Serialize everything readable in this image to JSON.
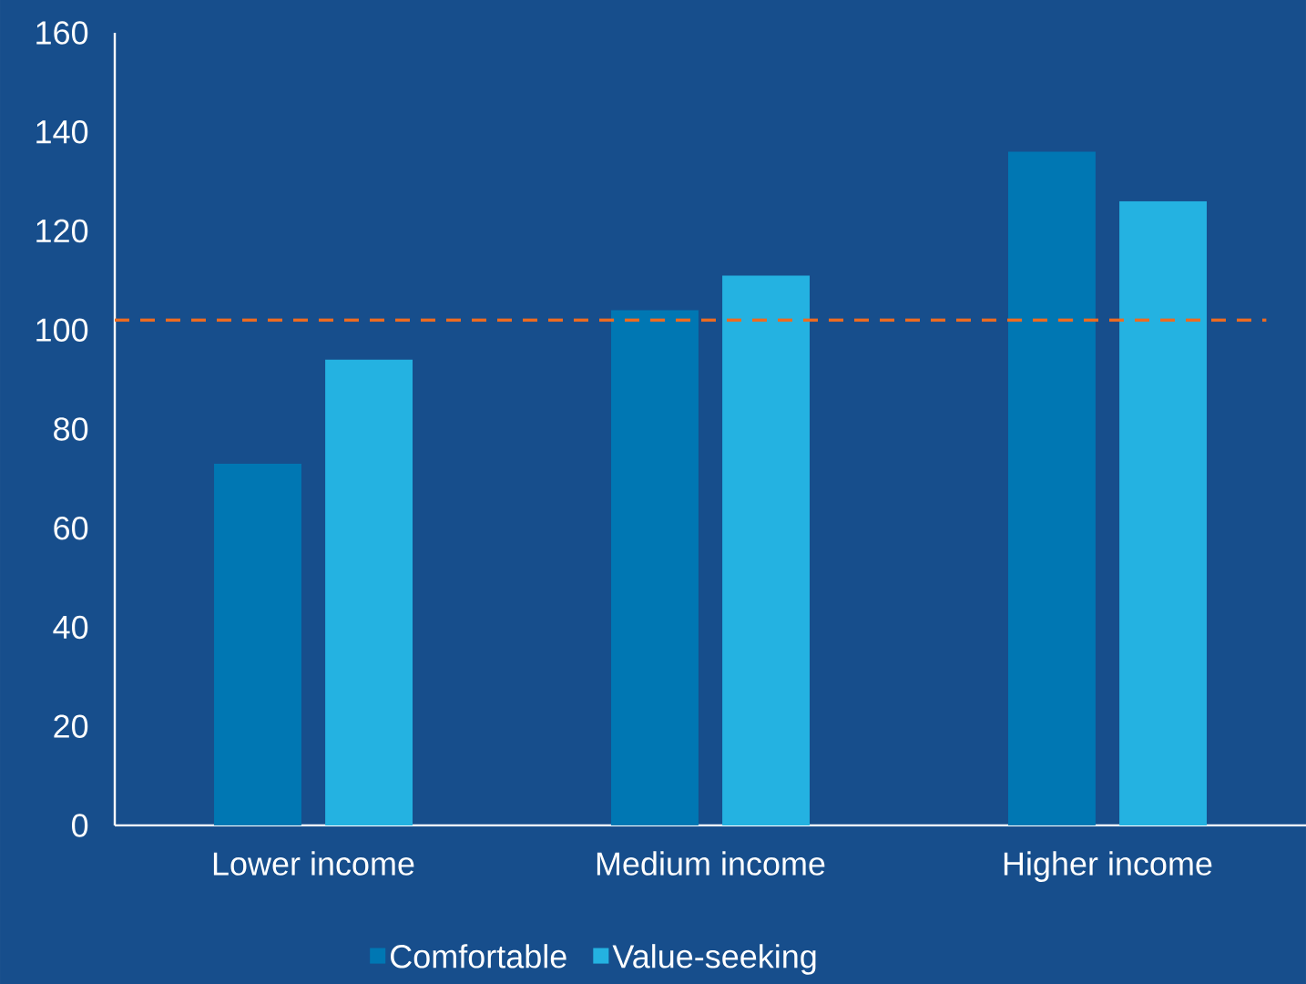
{
  "chart_data": {
    "type": "bar",
    "categories": [
      "Lower income",
      "Medium income",
      "Higher income"
    ],
    "series": [
      {
        "name": "Comfortable",
        "color": "#0077b3",
        "values": [
          73,
          104,
          136
        ]
      },
      {
        "name": "Value-seeking",
        "color": "#24b2e1",
        "values": [
          94,
          111,
          126
        ]
      }
    ],
    "ylim": [
      0,
      160
    ],
    "yticks": [
      0,
      20,
      40,
      60,
      80,
      100,
      120,
      140,
      160
    ],
    "ref_lines": [
      {
        "axis": "y",
        "value": 102,
        "color": "#ed6b21",
        "line_style": "dashed"
      }
    ],
    "grid": false,
    "legend": "bottom"
  }
}
